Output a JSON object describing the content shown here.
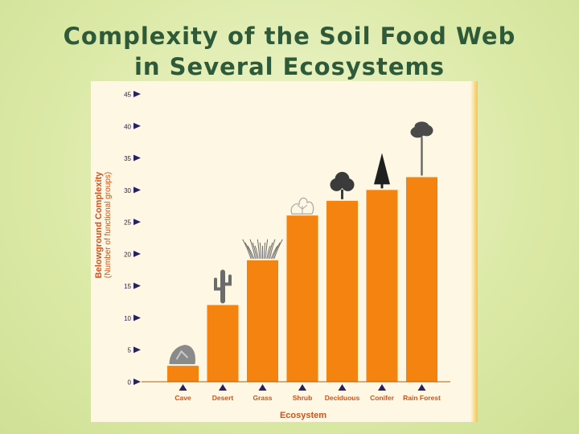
{
  "slide": {
    "title_line1": "Complexity of the Soil Food Web",
    "title_line2": "in Several Ecosystems"
  },
  "colors": {
    "bar": "#f5830f",
    "axis_label": "#d2521a",
    "tick": "#2a2160",
    "title": "#2f5a3a",
    "silhouette": "#6b6b6b"
  },
  "chart_data": {
    "type": "bar",
    "categories": [
      "Cave",
      "Desert",
      "Grass",
      "Shrub",
      "Deciduous",
      "Conifer",
      "Rain Forest"
    ],
    "values": [
      2.5,
      12,
      19,
      26,
      28.3,
      30,
      32
    ],
    "xlabel": "Ecosystem",
    "ylabel": "Belowground Complexity",
    "ylabel_sub": "(Number of functional groups)",
    "ylim": [
      0,
      45
    ],
    "yticks": [
      0,
      5,
      10,
      15,
      20,
      25,
      30,
      35,
      40,
      45
    ],
    "grid": false,
    "bar_icons": [
      "rock-icon",
      "cactus-icon",
      "grass-icon",
      "shrub-icon",
      "deciduous-tree-icon",
      "conifer-tree-icon",
      "rainforest-tree-icon"
    ]
  }
}
